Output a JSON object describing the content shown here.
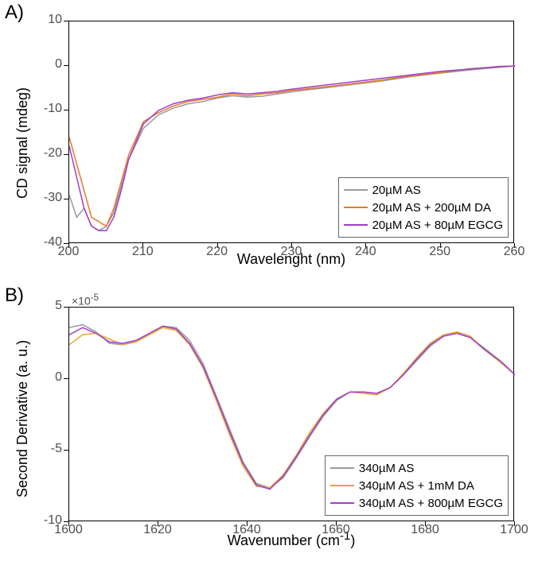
{
  "panelA": {
    "label": "A)",
    "type": "line",
    "xlabel": "Wavelenght (nm)",
    "ylabel": "CD signal (mdeg)",
    "label_fontsize": 18,
    "tick_fontsize": 16,
    "tick_color": "#4d4d4d",
    "background_color": "#ffffff",
    "border_color": "#000000",
    "xlim": [
      200,
      260
    ],
    "ylim": [
      -40,
      10
    ],
    "xticks": [
      200,
      210,
      220,
      230,
      240,
      250,
      260
    ],
    "yticks": [
      -40,
      -30,
      -20,
      -10,
      0,
      10
    ],
    "series": [
      {
        "name": "20µM AS",
        "legend_prefix": "20",
        "legend_unit": "M AS",
        "color": "#9a9a9a",
        "width": 1.5,
        "x": [
          200,
          201,
          202,
          203,
          204,
          205,
          206,
          207,
          208,
          210,
          212,
          214,
          216,
          218,
          220,
          222,
          224,
          226,
          228,
          230,
          234,
          238,
          242,
          246,
          250,
          254,
          258,
          260
        ],
        "y": [
          -29,
          -34,
          -32,
          -36,
          -37,
          -36,
          -33,
          -27,
          -21,
          -14,
          -11,
          -9.5,
          -8.5,
          -8,
          -7.2,
          -6.7,
          -7,
          -6.8,
          -6.3,
          -5.8,
          -5,
          -4.2,
          -3.4,
          -2.4,
          -1.6,
          -0.9,
          -0.3,
          0
        ]
      },
      {
        "name": "20µM AS + 200µM DA",
        "legend_prefix": "20",
        "legend_suffix": "M AS + 200",
        "legend_tail": "M DA",
        "color": "#e9772b",
        "width": 1.5,
        "x": [
          200,
          201,
          202,
          203,
          204,
          205,
          206,
          207,
          208,
          210,
          212,
          214,
          216,
          218,
          220,
          222,
          224,
          226,
          228,
          230,
          234,
          238,
          242,
          246,
          250,
          254,
          258,
          260
        ],
        "y": [
          -16,
          -22,
          -28,
          -34,
          -35,
          -36,
          -32,
          -26,
          -20,
          -12.5,
          -10.5,
          -9,
          -8,
          -7.5,
          -7,
          -6.3,
          -6.7,
          -6.3,
          -6,
          -5.5,
          -4.8,
          -4,
          -3.2,
          -2.2,
          -1.5,
          -0.6,
          -0.2,
          0
        ]
      },
      {
        "name": "20µM AS + 80µM EGCG",
        "legend_prefix": "20",
        "legend_suffix": "M AS + 80",
        "legend_tail": "M EGCG",
        "color": "#a040c8",
        "width": 1.5,
        "x": [
          200,
          201,
          202,
          203,
          204,
          205,
          206,
          207,
          208,
          210,
          212,
          214,
          216,
          218,
          220,
          222,
          224,
          226,
          228,
          230,
          234,
          238,
          242,
          246,
          250,
          254,
          258,
          260
        ],
        "y": [
          -18,
          -25,
          -32,
          -36,
          -37,
          -37,
          -34,
          -28,
          -21,
          -13,
          -10,
          -8.5,
          -7.7,
          -7.2,
          -6.5,
          -6,
          -6.3,
          -6,
          -5.7,
          -5.2,
          -4.4,
          -3.6,
          -2.8,
          -2,
          -1.2,
          -0.7,
          -0.1,
          0
        ]
      }
    ],
    "legend_pos": "lower-right"
  },
  "panelB": {
    "label": "B)",
    "type": "line",
    "xlabel_prefix": "Wavenumber (cm",
    "xlabel_sup": "-1",
    "xlabel_suffix": ")",
    "ylabel": "Second Derivative (a. u.)",
    "exponent": "×10",
    "exponent_sup": "-5",
    "label_fontsize": 18,
    "tick_fontsize": 16,
    "tick_color": "#4d4d4d",
    "background_color": "#ffffff",
    "border_color": "#000000",
    "xlim": [
      1600,
      1700
    ],
    "ylim": [
      -10,
      5
    ],
    "xticks": [
      1600,
      1620,
      1640,
      1660,
      1680,
      1700
    ],
    "yticks": [
      -10,
      -5,
      0,
      5
    ],
    "series": [
      {
        "name": "340µM AS",
        "legend_prefix": "340",
        "legend_unit": "M AS",
        "color": "#9a9a9a",
        "width": 1.5,
        "x": [
          1600,
          1603,
          1606,
          1609,
          1612,
          1615,
          1618,
          1621,
          1624,
          1627,
          1630,
          1633,
          1636,
          1639,
          1642,
          1645,
          1648,
          1651,
          1654,
          1657,
          1660,
          1663,
          1666,
          1669,
          1672,
          1675,
          1678,
          1681,
          1684,
          1687,
          1690,
          1693,
          1697,
          1700
        ],
        "y": [
          3.6,
          3.8,
          3.3,
          2.5,
          2.4,
          2.7,
          3.2,
          3.7,
          3.6,
          2.7,
          1.1,
          -1.2,
          -3.5,
          -5.8,
          -7.3,
          -7.6,
          -6.9,
          -5.5,
          -4,
          -2.6,
          -1.5,
          -0.9,
          -0.9,
          -1,
          -0.6,
          0.3,
          1.3,
          2.3,
          3,
          3.2,
          2.9,
          2.2,
          1.2,
          0.3
        ]
      },
      {
        "name": "340µM AS + 1mM DA",
        "legend_prefix": "340",
        "legend_suffix": "M AS + 1mM DA",
        "color": "#eca22d",
        "width": 1.5,
        "x": [
          1600,
          1603,
          1606,
          1609,
          1612,
          1615,
          1618,
          1621,
          1624,
          1627,
          1630,
          1633,
          1636,
          1639,
          1642,
          1645,
          1648,
          1651,
          1654,
          1657,
          1660,
          1663,
          1666,
          1669,
          1672,
          1675,
          1678,
          1681,
          1684,
          1687,
          1690,
          1693,
          1697,
          1700
        ],
        "y": [
          2.4,
          3.1,
          3.2,
          2.8,
          2.4,
          2.6,
          3.1,
          3.6,
          3.4,
          2.4,
          0.8,
          -1.5,
          -3.9,
          -6.1,
          -7.5,
          -7.6,
          -6.7,
          -5.3,
          -3.7,
          -2.4,
          -1.4,
          -0.9,
          -1,
          -1.1,
          -0.6,
          0.4,
          1.5,
          2.5,
          3.1,
          3.3,
          3,
          2.1,
          1.1,
          0.3
        ]
      },
      {
        "name": "340µM AS + 800µM EGCG",
        "legend_prefix": "340",
        "legend_suffix": "M AS + 800",
        "legend_tail": "M EGCG",
        "color": "#a040c8",
        "width": 1.5,
        "x": [
          1600,
          1603,
          1606,
          1609,
          1612,
          1615,
          1618,
          1621,
          1624,
          1627,
          1630,
          1633,
          1636,
          1639,
          1642,
          1645,
          1648,
          1651,
          1654,
          1657,
          1660,
          1663,
          1666,
          1669,
          1672,
          1675,
          1678,
          1681,
          1684,
          1687,
          1690,
          1693,
          1697,
          1700
        ],
        "y": [
          3.1,
          3.6,
          3.2,
          2.6,
          2.5,
          2.7,
          3.2,
          3.7,
          3.5,
          2.5,
          0.9,
          -1.3,
          -3.7,
          -5.9,
          -7.4,
          -7.7,
          -6.8,
          -5.4,
          -3.9,
          -2.5,
          -1.4,
          -0.9,
          -0.9,
          -1,
          -0.6,
          0.3,
          1.4,
          2.4,
          3,
          3.2,
          2.9,
          2.1,
          1.2,
          0.3
        ]
      }
    ],
    "legend_pos": "lower-right"
  }
}
